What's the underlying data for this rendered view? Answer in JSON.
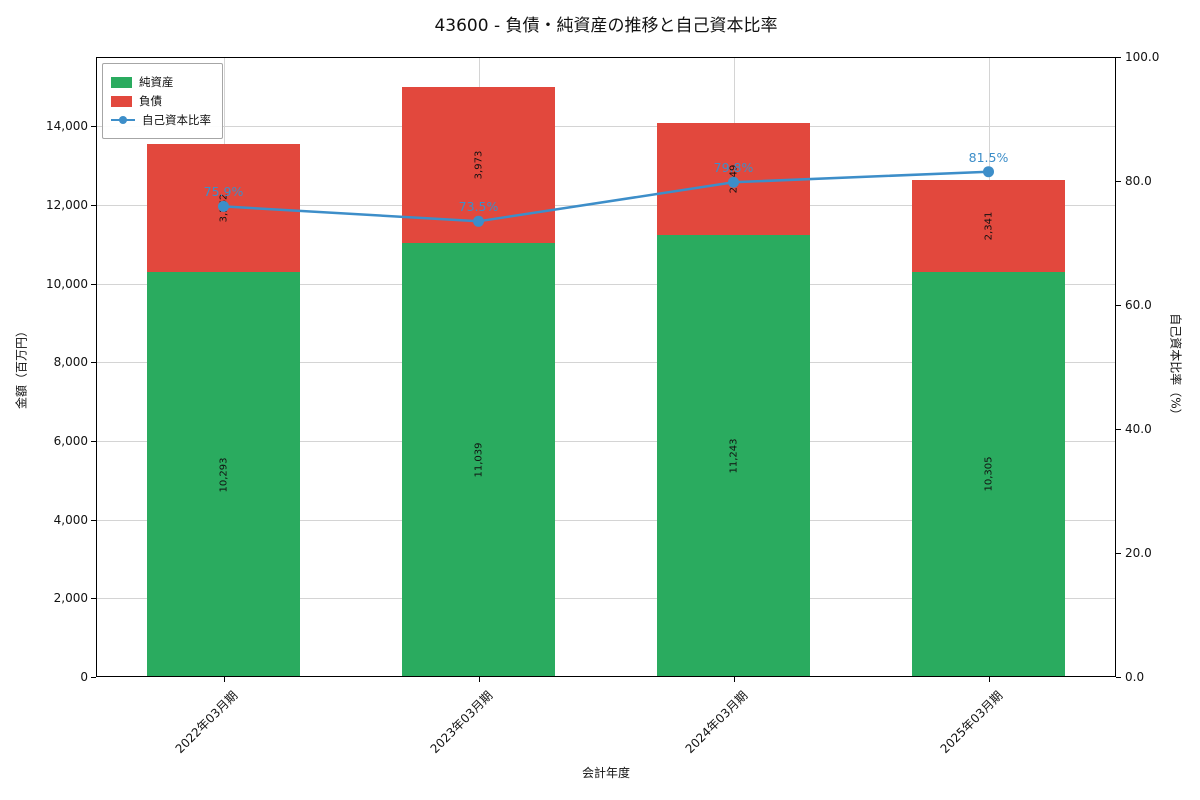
{
  "title": "43600 - 負債・純資産の推移と自己資本比率",
  "chart_data": {
    "type": "bar",
    "stacked": true,
    "title": "43600 - 負債・純資産の推移と自己資本比率",
    "xlabel": "会計年度",
    "ylabel_left": "金額（百万円）",
    "ylabel_right": "自己資本比率（%）",
    "categories": [
      "2022年03月期",
      "2023年03月期",
      "2024年03月期",
      "2025年03月期"
    ],
    "series": [
      {
        "name": "純資産",
        "color": "#2aab5f",
        "values": [
          10293,
          11039,
          11243,
          10305
        ],
        "labels": [
          "10,293",
          "11,039",
          "11,243",
          "10,305"
        ]
      },
      {
        "name": "負債",
        "color": "#e2483d",
        "values": [
          3262,
          3973,
          2849,
          2341
        ],
        "labels": [
          "3,262",
          "3,973",
          "2,849",
          "2,341"
        ]
      }
    ],
    "line_series": {
      "name": "自己資本比率",
      "color": "#3d8ec9",
      "values": [
        75.9,
        73.5,
        79.8,
        81.5
      ],
      "labels": [
        "75.9%",
        "73.5%",
        "79.8%",
        "81.5%"
      ]
    },
    "ylim_left": [
      0,
      15763
    ],
    "ylim_right": [
      0,
      100
    ],
    "left_ticks": [
      0,
      2000,
      4000,
      6000,
      8000,
      10000,
      12000,
      14000
    ],
    "left_tick_labels": [
      "0",
      "2,000",
      "4,000",
      "6,000",
      "8,000",
      "10,000",
      "12,000",
      "14,000"
    ],
    "right_ticks": [
      0,
      20,
      40,
      60,
      80,
      100
    ],
    "right_tick_labels": [
      "0.0",
      "20.0",
      "40.0",
      "60.0",
      "80.0",
      "100.0"
    ],
    "legend_position": "upper-left",
    "grid": true
  }
}
